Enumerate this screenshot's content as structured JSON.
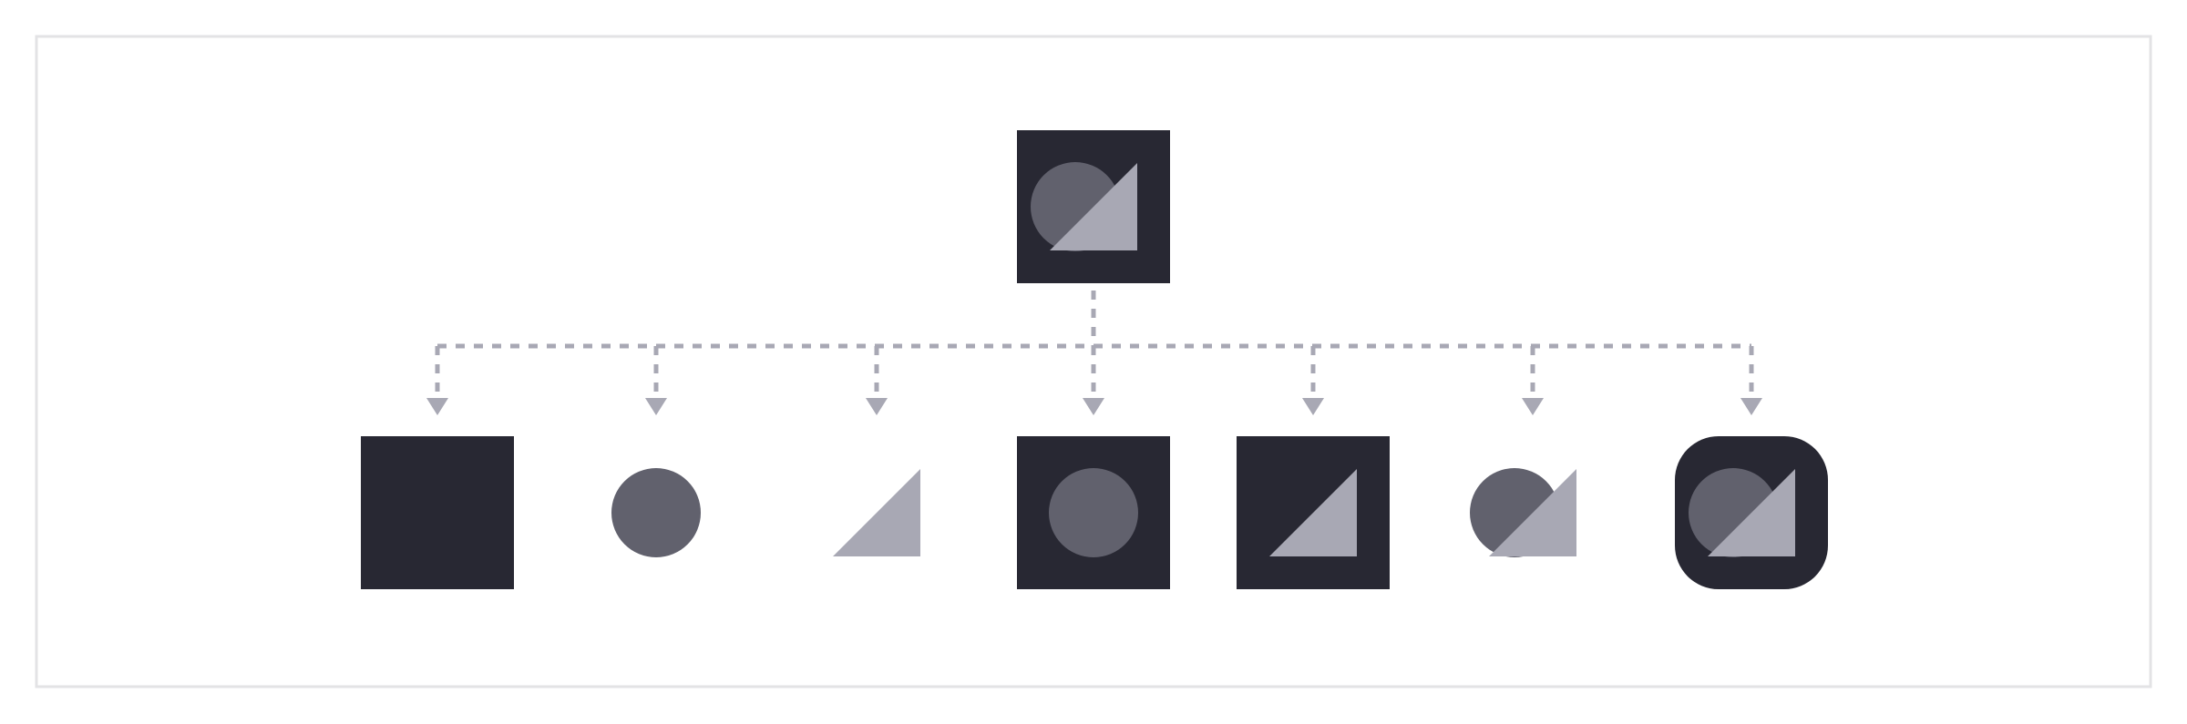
{
  "colors": {
    "background": "#ffffff",
    "frame_border": "#e3e3e5",
    "dark": "#282833",
    "circle": "#61616d",
    "triangle": "#a8a8b4",
    "connector": "#a8a8b4"
  },
  "diagram": {
    "root": {
      "components": [
        "square",
        "circle",
        "triangle"
      ],
      "style": "square"
    },
    "children": [
      {
        "components": [
          "square"
        ],
        "style": "square"
      },
      {
        "components": [
          "circle"
        ],
        "style": "none"
      },
      {
        "components": [
          "triangle"
        ],
        "style": "none"
      },
      {
        "components": [
          "square",
          "circle"
        ],
        "style": "square"
      },
      {
        "components": [
          "square",
          "triangle"
        ],
        "style": "square"
      },
      {
        "components": [
          "circle",
          "triangle"
        ],
        "style": "none"
      },
      {
        "components": [
          "square",
          "circle",
          "triangle"
        ],
        "style": "rounded"
      }
    ]
  }
}
